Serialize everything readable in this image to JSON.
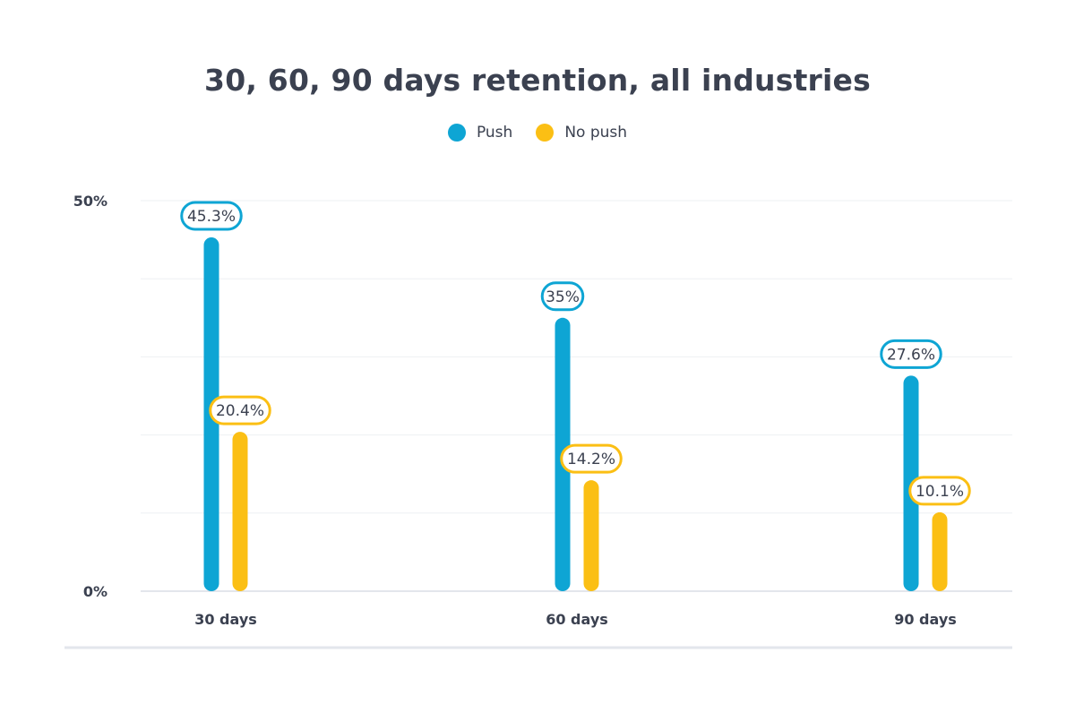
{
  "chart_data": {
    "type": "bar",
    "title": "30, 60, 90 days retention, all industries",
    "categories": [
      "30 days",
      "60 days",
      "90 days"
    ],
    "series": [
      {
        "name": "Push",
        "color": "#0ea5d4",
        "values": [
          45.3,
          35,
          27.6
        ],
        "labels": [
          "45.3%",
          "35%",
          "27.6%"
        ]
      },
      {
        "name": "No push",
        "color": "#fbbf14",
        "values": [
          20.4,
          14.2,
          10.1
        ],
        "labels": [
          "20.4%",
          "14.2%",
          "10.1%"
        ]
      }
    ],
    "ylim": [
      0,
      50
    ],
    "yticks": [
      {
        "value": 0,
        "label": "0%"
      },
      {
        "value": 50,
        "label": "50%"
      }
    ],
    "gridlines": [
      0,
      10,
      20,
      30,
      40,
      50
    ],
    "grid": true,
    "legend_position": "top-center",
    "xlabel": "",
    "ylabel": ""
  }
}
